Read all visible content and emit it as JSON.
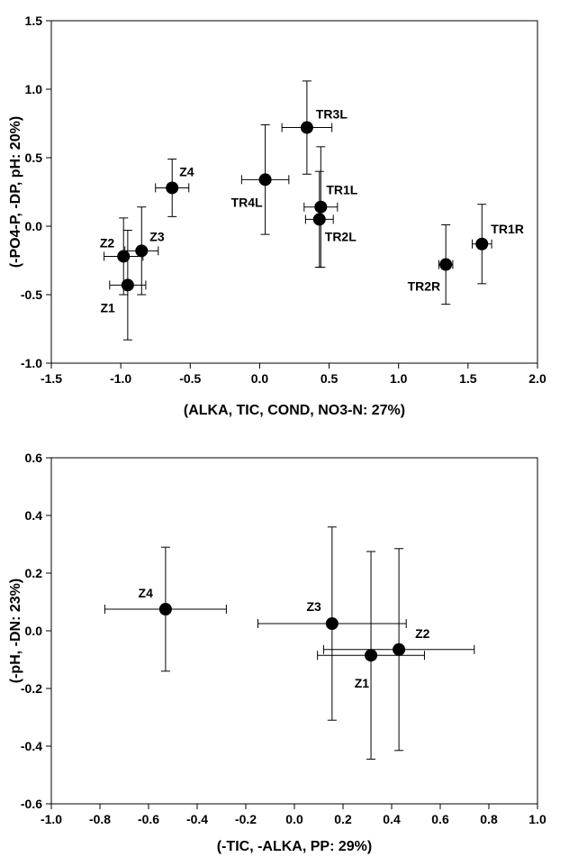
{
  "chart_data": [
    {
      "type": "scatter",
      "xlabel": "(ALKA, TIC, COND, NO3-N: 27%)",
      "ylabel": "(-PO4-P, -DP, pH: 20%)",
      "xlim": [
        -1.5,
        2.0
      ],
      "ylim": [
        -1.0,
        1.5
      ],
      "xticks": [
        "-1.5",
        "-1.0",
        "-0.5",
        "0.0",
        "0.5",
        "1.0",
        "1.5",
        "2.0"
      ],
      "yticks": [
        "-1.0",
        "-0.5",
        "0.0",
        "0.5",
        "1.0",
        "1.5"
      ],
      "points": [
        {
          "label": "TR3L",
          "x": 0.34,
          "y": 0.72,
          "xerr": 0.18,
          "yerr": 0.34
        },
        {
          "label": "TR4L",
          "x": 0.04,
          "y": 0.34,
          "xerr": 0.17,
          "yerr": 0.4
        },
        {
          "label": "TR1L",
          "x": 0.44,
          "y": 0.14,
          "xerr": 0.12,
          "yerr": 0.44
        },
        {
          "label": "TR2L",
          "x": 0.43,
          "y": 0.05,
          "xerr": 0.1,
          "yerr": 0.35
        },
        {
          "label": "TR1R",
          "x": 1.6,
          "y": -0.13,
          "xerr": 0.07,
          "yerr": 0.29
        },
        {
          "label": "TR2R",
          "x": 1.34,
          "y": -0.28,
          "xerr": 0.05,
          "yerr": 0.29
        },
        {
          "label": "Z4",
          "x": -0.63,
          "y": 0.28,
          "xerr": 0.12,
          "yerr": 0.21
        },
        {
          "label": "Z3",
          "x": -0.85,
          "y": -0.18,
          "xerr": 0.12,
          "yerr": 0.32
        },
        {
          "label": "Z2",
          "x": -0.98,
          "y": -0.22,
          "xerr": 0.14,
          "yerr": 0.28
        },
        {
          "label": "Z1",
          "x": -0.95,
          "y": -0.43,
          "xerr": 0.13,
          "yerr": 0.4
        }
      ]
    },
    {
      "type": "scatter",
      "xlabel": "(-TIC, -ALKA, PP: 29%)",
      "ylabel": "(-pH, -DN: 23%)",
      "xlim": [
        -1.0,
        1.0
      ],
      "ylim": [
        -0.6,
        0.6
      ],
      "xticks": [
        "-1.0",
        "-0.8",
        "-0.6",
        "-0.4",
        "-0.2",
        "0.0",
        "0.2",
        "0.4",
        "0.6",
        "0.8",
        "1.0"
      ],
      "yticks": [
        "-0.6",
        "-0.4",
        "-0.2",
        "0.0",
        "0.2",
        "0.4",
        "0.6"
      ],
      "points": [
        {
          "label": "Z4",
          "x": -0.53,
          "y": 0.075,
          "xerr": 0.25,
          "yerr": 0.215
        },
        {
          "label": "Z3",
          "x": 0.155,
          "y": 0.025,
          "xerr": 0.305,
          "yerr": 0.335
        },
        {
          "label": "Z2",
          "x": 0.43,
          "y": -0.065,
          "xerr": 0.31,
          "yerr": 0.35
        },
        {
          "label": "Z1",
          "x": 0.315,
          "y": -0.085,
          "xerr": 0.22,
          "yerr": 0.36
        }
      ]
    }
  ]
}
